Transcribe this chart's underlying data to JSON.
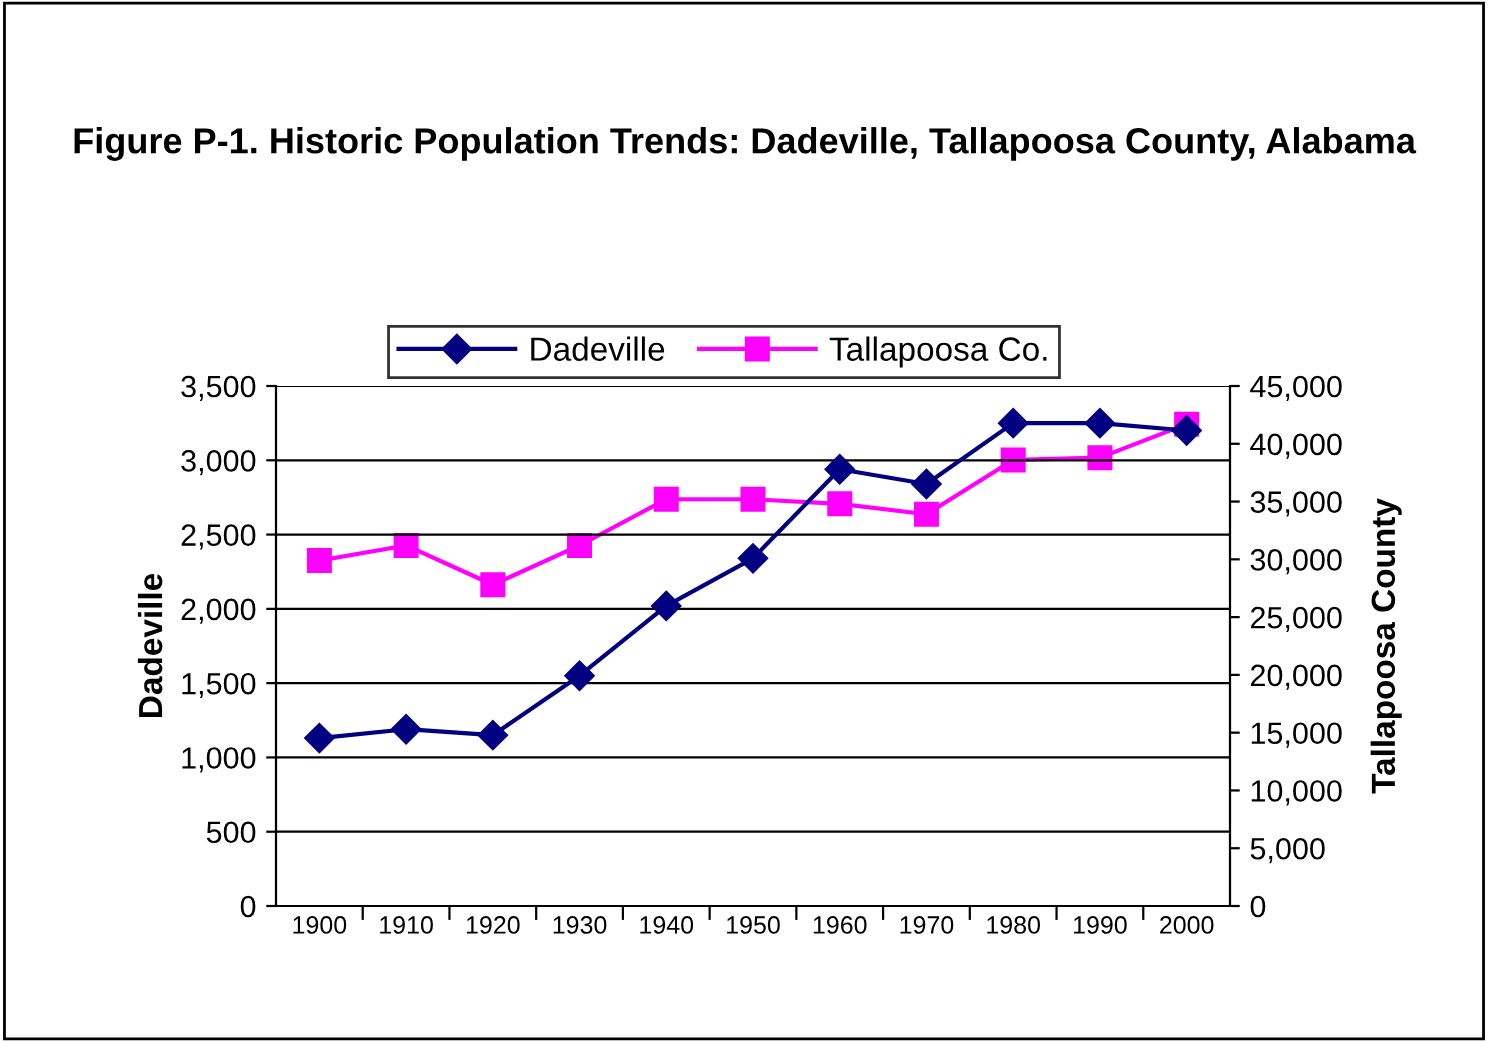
{
  "chart_data": {
    "type": "line",
    "title": "Figure P-1. Historic Population Trends: Dadeville, Tallapoosa County, Alabama",
    "ylabel": "Dadeville",
    "y2label": "Tallapoosa County",
    "categories": [
      "1900",
      "1910",
      "1920",
      "1930",
      "1940",
      "1950",
      "1960",
      "1970",
      "1980",
      "1990",
      "2000"
    ],
    "series": [
      {
        "name": "Dadeville",
        "color": "#000080",
        "marker": "diamond",
        "values": [
          1130,
          1190,
          1150,
          1550,
          2020,
          2340,
          2940,
          2840,
          3250,
          3250,
          3200
        ]
      },
      {
        "name": "Tallapoosa Co.",
        "color": "#ff00ff",
        "marker": "square",
        "axis": "y2",
        "values": [
          29900,
          31200,
          27800,
          31200,
          35200,
          35200,
          34800,
          33900,
          38600,
          38800,
          41700
        ]
      }
    ],
    "ylim": [
      0,
      3500
    ],
    "yticks": [
      {
        "value": 0,
        "label": "0"
      },
      {
        "value": 500,
        "label": "500"
      },
      {
        "value": 1000,
        "label": "1,000"
      },
      {
        "value": 1500,
        "label": "1,500"
      },
      {
        "value": 2000,
        "label": "2,000"
      },
      {
        "value": 2500,
        "label": "2,500"
      },
      {
        "value": 3000,
        "label": "3,000"
      },
      {
        "value": 3500,
        "label": "3,500"
      }
    ],
    "y2lim": [
      0,
      45000
    ],
    "y2ticks": [
      {
        "value": 0,
        "label": "0"
      },
      {
        "value": 5000,
        "label": "5,000"
      },
      {
        "value": 10000,
        "label": "10,000"
      },
      {
        "value": 15000,
        "label": "15,000"
      },
      {
        "value": 20000,
        "label": "20,000"
      },
      {
        "value": 25000,
        "label": "25,000"
      },
      {
        "value": 30000,
        "label": "30,000"
      },
      {
        "value": 35000,
        "label": "35,000"
      },
      {
        "value": 40000,
        "label": "40,000"
      },
      {
        "value": 45000,
        "label": "45,000"
      }
    ],
    "grid": "y",
    "legend": "top",
    "line_style": "solid"
  }
}
